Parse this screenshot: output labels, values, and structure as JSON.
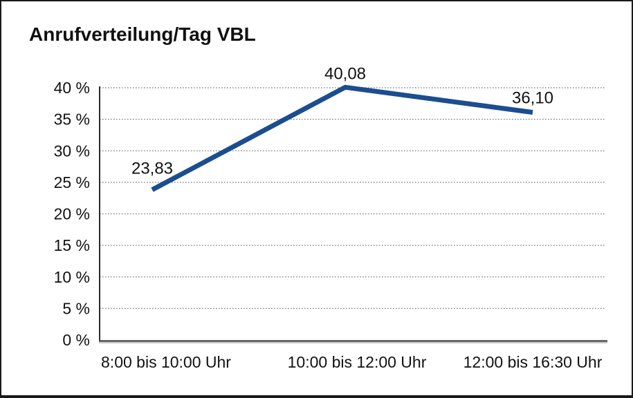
{
  "title": "Anrufverteilung/Tag VBL",
  "chart_data": {
    "type": "line",
    "title": "Anrufverteilung/Tag VBL",
    "categories": [
      "8:00 bis 10:00 Uhr",
      "10:00 bis 12:00 Uhr",
      "12:00 bis 16:30 Uhr"
    ],
    "values": [
      23.83,
      40.08,
      36.1
    ],
    "value_labels": [
      "23,83",
      "40,08",
      "36,10"
    ],
    "y_ticks": [
      0,
      5,
      10,
      15,
      20,
      25,
      30,
      35,
      40
    ],
    "y_tick_labels": [
      "0 %",
      "5 %",
      "10 %",
      "15 %",
      "20 %",
      "25 %",
      "30 %",
      "35 %",
      "40 %"
    ],
    "ylim": [
      0,
      40
    ],
    "xlabel": "",
    "ylabel": "",
    "legend": "none",
    "grid": "horizontal-dotted",
    "line_color": "#1a4e90",
    "text_color": "#111111",
    "grid_color": "#787878",
    "axis_color": "#2b2b2b",
    "x_axis_color": "#4d4d4d",
    "background": "#ffffff"
  }
}
